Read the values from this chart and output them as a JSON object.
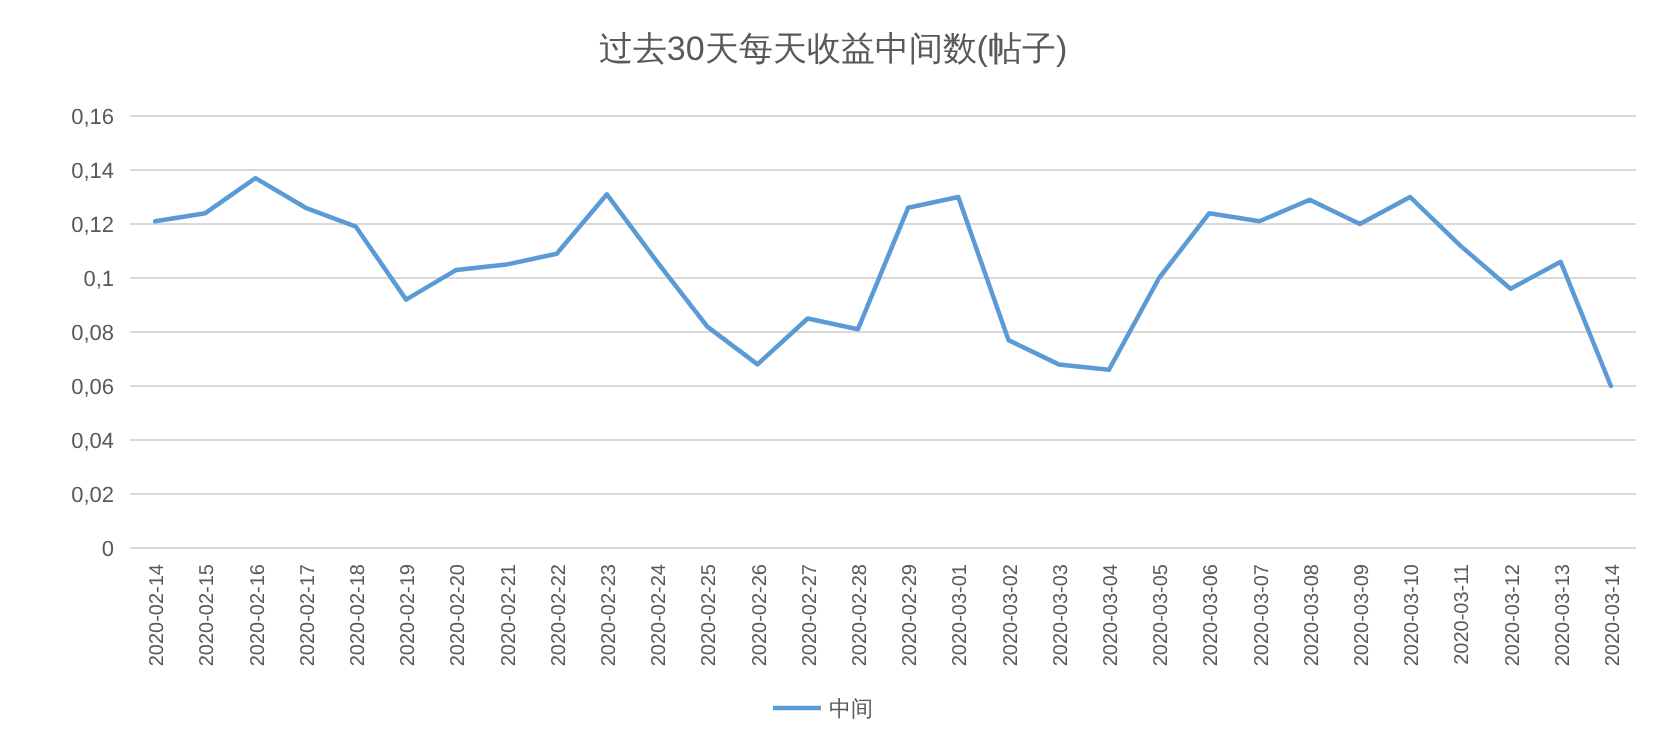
{
  "chart_data": {
    "type": "line",
    "title": "过去30天每天收益中间数(帖子)",
    "categories": [
      "2020-02-14",
      "2020-02-15",
      "2020-02-16",
      "2020-02-17",
      "2020-02-18",
      "2020-02-19",
      "2020-02-20",
      "2020-02-21",
      "2020-02-22",
      "2020-02-23",
      "2020-02-24",
      "2020-02-25",
      "2020-02-26",
      "2020-02-27",
      "2020-02-28",
      "2020-02-29",
      "2020-03-01",
      "2020-03-02",
      "2020-03-03",
      "2020-03-04",
      "2020-03-05",
      "2020-03-06",
      "2020-03-07",
      "2020-03-08",
      "2020-03-09",
      "2020-03-10",
      "2020-03-11",
      "2020-03-12",
      "2020-03-13",
      "2020-03-14"
    ],
    "series": [
      {
        "name": "中间",
        "color": "#5b9bd5",
        "values": [
          0.121,
          0.124,
          0.137,
          0.126,
          0.119,
          0.092,
          0.103,
          0.105,
          0.109,
          0.131,
          0.106,
          0.082,
          0.068,
          0.085,
          0.081,
          0.126,
          0.13,
          0.077,
          0.068,
          0.066,
          0.1,
          0.124,
          0.121,
          0.129,
          0.12,
          0.13,
          0.112,
          0.096,
          0.106,
          0.06
        ]
      }
    ],
    "ylim": [
      0,
      0.16
    ],
    "yticks": [
      0,
      {
        "value": 0.02,
        "label": "0,02"
      },
      {
        "value": 0.04,
        "label": "0,04"
      },
      {
        "value": 0.06,
        "label": "0,06"
      },
      {
        "value": 0.08,
        "label": "0,08"
      },
      {
        "value": 0.1,
        "label": "0,1"
      },
      {
        "value": 0.12,
        "label": "0,12"
      },
      {
        "value": 0.14,
        "label": "0,14"
      },
      {
        "value": 0.16,
        "label": "0,16"
      }
    ],
    "grid": "y",
    "legend": "bottom",
    "marker": "none",
    "line_style": "solid"
  }
}
